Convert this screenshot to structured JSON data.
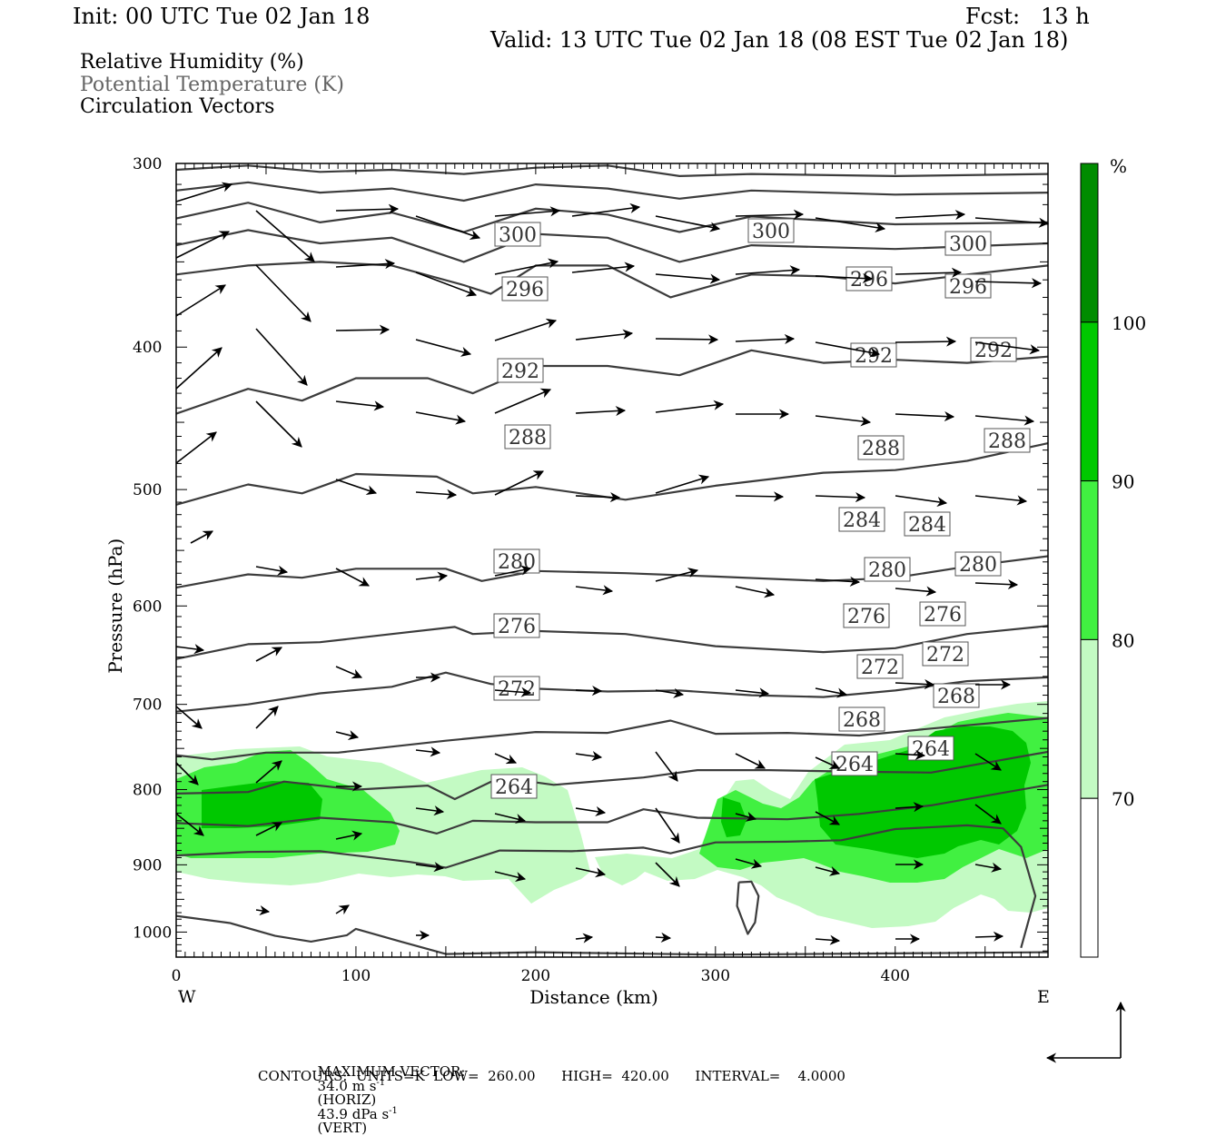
{
  "header": {
    "init": "Init: 00 UTC Tue 02 Jan 18",
    "fcst": "Fcst:   13 h",
    "valid": "Valid: 13 UTC Tue 02 Jan 18 (08 EST Tue 02 Jan 18)"
  },
  "legend": {
    "line1": "Relative Humidity (%)",
    "line2": "Potential Temperature (K)",
    "line3": "Circulation Vectors"
  },
  "colors": {
    "rh70": "#c3fac3",
    "rh80": "#41f041",
    "rh90": "#00c800",
    "rh100": "#008c00",
    "contour": "#3c3c3c",
    "legend_theta": "#646464"
  },
  "chart_data": {
    "type": "cross-section",
    "xlabel": "Distance (km)",
    "ylabel": "Pressure (hPa)",
    "xlim": [
      0,
      485
    ],
    "ylim": [
      1040,
      300
    ],
    "y_scale": "log",
    "x_ticks": [
      0,
      100,
      200,
      300,
      400
    ],
    "y_ticks": [
      300,
      400,
      500,
      600,
      700,
      800,
      900,
      1000
    ],
    "x_end_labels": {
      "left": "W",
      "right": "E"
    },
    "colorbar": {
      "unit": "%",
      "levels": [
        70,
        80,
        90,
        100
      ],
      "colors": [
        "#ffffff",
        "#c3fac3",
        "#41f041",
        "#00c800",
        "#008c00"
      ]
    },
    "theta_contours": [
      {
        "value": 300,
        "label": "300",
        "points": [
          [
            0,
            357
          ],
          [
            40,
            352
          ],
          [
            80,
            350
          ],
          [
            120,
            352
          ],
          [
            160,
            363
          ],
          [
            175,
            368
          ],
          [
            200,
            352
          ],
          [
            240,
            352
          ],
          [
            275,
            370
          ],
          [
            320,
            357
          ],
          [
            360,
            358
          ],
          [
            400,
            362
          ],
          [
            440,
            357
          ],
          [
            485,
            352
          ]
        ]
      },
      {
        "value": 296,
        "label": "296",
        "points": [
          [
            0,
            444
          ],
          [
            40,
            427
          ],
          [
            70,
            435
          ],
          [
            100,
            420
          ],
          [
            140,
            420
          ],
          [
            165,
            430
          ],
          [
            200,
            412
          ],
          [
            240,
            412
          ],
          [
            280,
            418
          ],
          [
            320,
            402
          ],
          [
            360,
            410
          ],
          [
            400,
            408
          ],
          [
            440,
            410
          ],
          [
            485,
            406
          ]
        ]
      },
      {
        "value": 292,
        "label": "292",
        "points": [
          [
            0,
            512
          ],
          [
            40,
            496
          ],
          [
            70,
            503
          ],
          [
            100,
            488
          ],
          [
            145,
            490
          ],
          [
            165,
            503
          ],
          [
            200,
            498
          ],
          [
            250,
            508
          ],
          [
            300,
            497
          ],
          [
            360,
            487
          ],
          [
            400,
            485
          ],
          [
            440,
            478
          ],
          [
            485,
            465
          ]
        ]
      },
      {
        "value": 288,
        "label": "288",
        "points": [
          [
            0,
            583
          ],
          [
            40,
            571
          ],
          [
            70,
            574
          ],
          [
            100,
            566
          ],
          [
            150,
            566
          ],
          [
            170,
            577
          ],
          [
            200,
            568
          ],
          [
            250,
            570
          ],
          [
            300,
            573
          ],
          [
            360,
            577
          ],
          [
            400,
            574
          ],
          [
            440,
            564
          ],
          [
            485,
            555
          ]
        ]
      },
      {
        "value": 284,
        "label": "284",
        "points": [
          [
            0,
            652
          ],
          [
            40,
            637
          ],
          [
            80,
            635
          ],
          [
            120,
            627
          ],
          [
            155,
            620
          ],
          [
            165,
            627
          ],
          [
            200,
            624
          ],
          [
            250,
            627
          ],
          [
            300,
            639
          ],
          [
            360,
            645
          ],
          [
            400,
            641
          ],
          [
            440,
            627
          ],
          [
            485,
            619
          ]
        ]
      },
      {
        "value": 280,
        "label": "280",
        "points": [
          [
            0,
            708
          ],
          [
            40,
            700
          ],
          [
            80,
            688
          ],
          [
            120,
            681
          ],
          [
            150,
            666
          ],
          [
            175,
            678
          ],
          [
            200,
            683
          ],
          [
            240,
            686
          ],
          [
            280,
            685
          ],
          [
            320,
            690
          ],
          [
            360,
            692
          ],
          [
            400,
            685
          ],
          [
            440,
            675
          ],
          [
            485,
            671
          ]
        ]
      },
      {
        "value": 276,
        "label": "276",
        "points": [
          [
            0,
            758
          ],
          [
            20,
            763
          ],
          [
            50,
            755
          ],
          [
            90,
            755
          ],
          [
            150,
            741
          ],
          [
            200,
            731
          ],
          [
            240,
            732
          ],
          [
            275,
            718
          ],
          [
            300,
            733
          ],
          [
            340,
            732
          ],
          [
            380,
            735
          ],
          [
            420,
            727
          ],
          [
            485,
            715
          ]
        ]
      },
      {
        "value": 272,
        "label": "272",
        "points": [
          [
            0,
            805
          ],
          [
            40,
            803
          ],
          [
            60,
            790
          ],
          [
            100,
            800
          ],
          [
            140,
            795
          ],
          [
            155,
            812
          ],
          [
            180,
            785
          ],
          [
            210,
            794
          ],
          [
            260,
            785
          ],
          [
            290,
            776
          ],
          [
            330,
            776
          ],
          [
            380,
            778
          ],
          [
            420,
            779
          ],
          [
            485,
            754
          ]
        ]
      },
      {
        "value": 268,
        "label": "268",
        "points": [
          [
            0,
            843
          ],
          [
            40,
            847
          ],
          [
            80,
            836
          ],
          [
            120,
            842
          ],
          [
            145,
            857
          ],
          [
            165,
            840
          ],
          [
            200,
            842
          ],
          [
            240,
            842
          ],
          [
            260,
            825
          ],
          [
            290,
            836
          ],
          [
            340,
            838
          ],
          [
            380,
            831
          ],
          [
            420,
            820
          ],
          [
            485,
            794
          ]
        ]
      },
      {
        "value": 264,
        "label": "264",
        "points": [
          [
            0,
            887
          ],
          [
            40,
            882
          ],
          [
            80,
            881
          ],
          [
            130,
            896
          ],
          [
            150,
            904
          ],
          [
            180,
            880
          ],
          [
            220,
            881
          ],
          [
            260,
            876
          ],
          [
            275,
            884
          ],
          [
            300,
            869
          ],
          [
            340,
            868
          ],
          [
            370,
            866
          ],
          [
            400,
            851
          ],
          [
            440,
            846
          ],
          [
            460,
            850
          ],
          [
            470,
            875
          ],
          [
            478,
            945
          ],
          [
            470,
            1025
          ]
        ]
      },
      {
        "value": 260,
        "label": "",
        "points": [
          [
            0,
            975
          ],
          [
            30,
            986
          ],
          [
            55,
            1006
          ],
          [
            75,
            1015
          ],
          [
            95,
            1005
          ],
          [
            100,
            995
          ],
          [
            125,
            1015
          ],
          [
            150,
            1035
          ],
          [
            200,
            1032
          ],
          [
            300,
            1036
          ],
          [
            400,
            1034
          ],
          [
            485,
            1032
          ]
        ]
      },
      {
        "value": 264,
        "label": "",
        "points": [
          [
            313,
            925
          ],
          [
            312,
            960
          ],
          [
            318,
            1003
          ],
          [
            322,
            985
          ],
          [
            324,
            945
          ],
          [
            320,
            924
          ],
          [
            313,
            925
          ]
        ]
      }
    ],
    "vectors_note": "circulation vectors (horizontal / vertical components)",
    "max_vector": {
      "horiz": "34.0 m s-1 (HORIZ)",
      "vert": "43.9 dPa s-1 (VERT)"
    }
  },
  "footer": {
    "max_label": "MAXIMUM VECTOR:",
    "max_horiz_val": "34.0 m s",
    "max_horiz_unit": "(HORIZ)",
    "max_vert_val": "43.9 dPa s",
    "max_vert_unit": "(VERT)",
    "superscript": "-1",
    "contours": "CONTOURS:  UNITS=K  LOW=  260.00      HIGH=  420.00      INTERVAL=    4.0000"
  }
}
